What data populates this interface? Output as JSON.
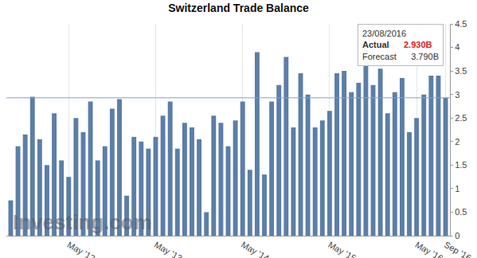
{
  "chart_data": {
    "type": "bar",
    "title": "Switzerland Trade Balance",
    "categories": [
      null,
      null,
      null,
      null,
      null,
      null,
      null,
      null,
      "May '12",
      null,
      null,
      null,
      null,
      null,
      null,
      null,
      null,
      null,
      null,
      null,
      "May '13",
      null,
      null,
      null,
      null,
      null,
      null,
      null,
      null,
      null,
      null,
      null,
      "May '14",
      null,
      null,
      null,
      null,
      null,
      null,
      null,
      null,
      null,
      null,
      null,
      "May '15",
      null,
      null,
      null,
      null,
      null,
      null,
      null,
      null,
      null,
      null,
      null,
      "May '16",
      null,
      null,
      null,
      "Sep '16"
    ],
    "values": [
      0.75,
      1.9,
      2.15,
      2.95,
      2.05,
      1.5,
      2.6,
      1.6,
      1.25,
      2.5,
      2.2,
      2.85,
      1.6,
      1.9,
      2.7,
      2.9,
      0.85,
      2.1,
      2.0,
      1.85,
      2.1,
      2.55,
      2.85,
      1.85,
      2.4,
      2.3,
      2.05,
      0.5,
      2.55,
      2.4,
      1.9,
      2.45,
      2.85,
      1.4,
      3.9,
      1.3,
      2.85,
      3.2,
      3.8,
      2.3,
      3.45,
      3.0,
      2.3,
      2.45,
      2.65,
      3.45,
      3.5,
      3.05,
      3.25,
      4.1,
      3.2,
      3.55,
      2.6,
      3.05,
      3.35,
      2.2,
      2.5,
      3.0,
      3.4,
      3.4,
      2.93
    ],
    "color": "#5b7ea8",
    "ylim": [
      0,
      4.5
    ],
    "yticks": [
      0,
      0.5,
      1,
      1.5,
      2,
      2.5,
      3,
      3.5,
      4,
      4.5
    ],
    "grid": true,
    "annotations": {
      "tooltip": {
        "date": "23/08/2016",
        "rows": [
          {
            "label": "Actual",
            "value": "2.930B",
            "color": "#e02020"
          },
          {
            "label": "Forecast",
            "value": "3.790B"
          }
        ]
      },
      "watermark": "Investing.com"
    }
  }
}
